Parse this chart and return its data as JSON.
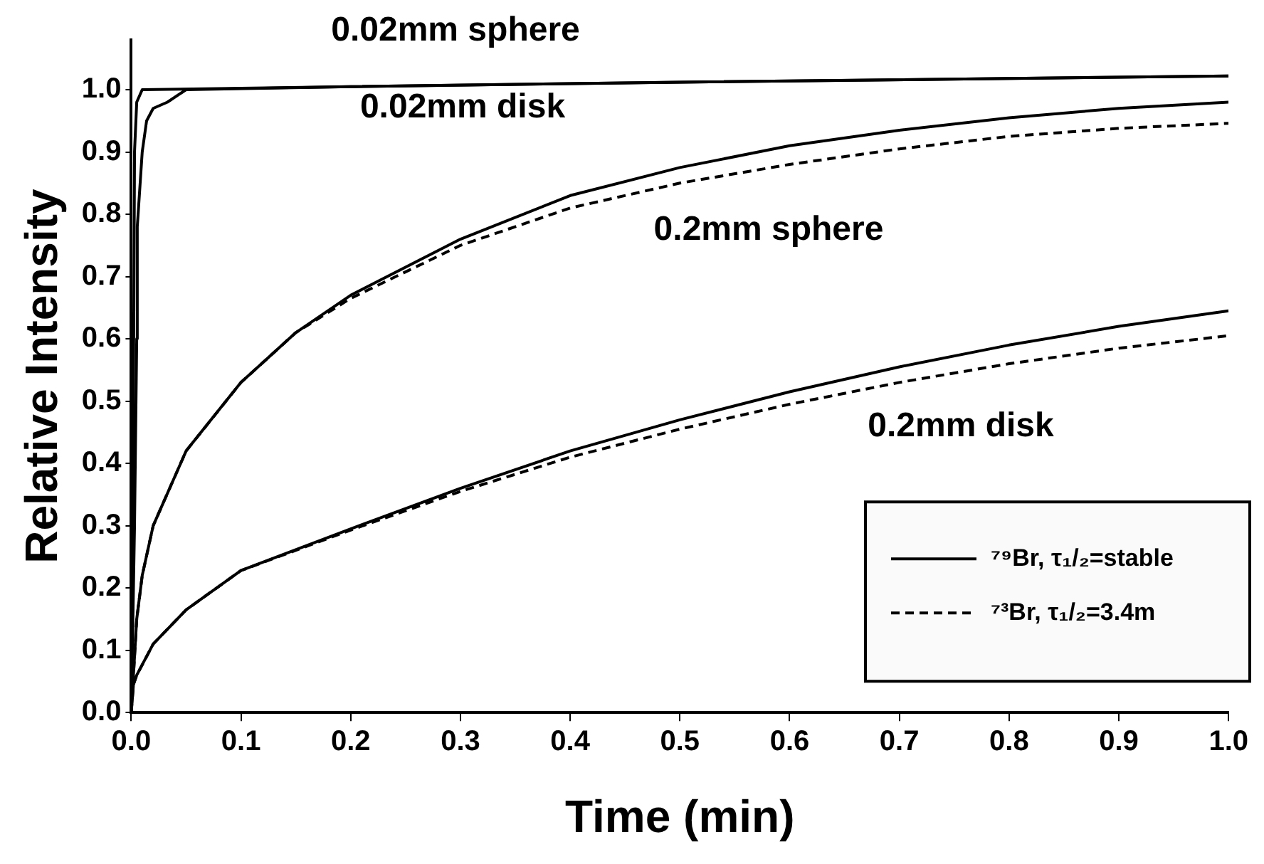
{
  "chart_data": {
    "type": "line",
    "xlabel": "Time (min)",
    "ylabel": "Relative Intensity",
    "xlim": [
      0,
      1.0
    ],
    "ylim": [
      0,
      1.08
    ],
    "xticks": [
      {
        "value": 0,
        "label": "0.0"
      },
      0.1,
      0.2,
      0.3,
      0.4,
      0.5,
      0.6,
      0.7,
      0.8,
      0.9,
      {
        "value": 1,
        "label": "1.0"
      }
    ],
    "yticks": [
      {
        "value": 0,
        "label": "0.0"
      },
      0.1,
      0.2,
      0.3,
      0.4,
      0.5,
      0.6,
      0.7,
      0.8,
      0.9,
      {
        "value": 1,
        "label": "1.0"
      }
    ],
    "grid": false,
    "legend": "bottom right",
    "marker": "none",
    "series": [
      {
        "color": "#000000",
        "line_style": "solid",
        "x": [
          0,
          0.002,
          0.003,
          0.005,
          0.01,
          0.2,
          0.5,
          1.0
        ],
        "values": [
          0,
          0.5,
          0.9,
          0.98,
          1.0,
          1.005,
          1.012,
          1.022
        ]
      },
      {
        "color": "#000000",
        "line_style": "solid",
        "x": [
          0,
          0.003,
          0.005,
          0.0055,
          0.01,
          0.014,
          0.02,
          0.033,
          0.05,
          0.2,
          0.5,
          1.0
        ],
        "values": [
          0,
          0.3,
          0.6,
          0.78,
          0.9,
          0.95,
          0.97,
          0.98,
          1.0,
          1.005,
          1.012,
          1.022
        ]
      },
      {
        "name": "⁷⁹Br, τ₁/₂=stable",
        "color": "#000000",
        "line_style": "solid",
        "x": [
          0,
          0.005,
          0.01,
          0.02,
          0.05,
          0.1,
          0.15,
          0.2,
          0.3,
          0.4,
          0.5,
          0.6,
          0.7,
          0.8,
          0.9,
          1.0
        ],
        "values": [
          0,
          0.15,
          0.22,
          0.3,
          0.42,
          0.53,
          0.61,
          0.67,
          0.76,
          0.83,
          0.875,
          0.91,
          0.935,
          0.955,
          0.97,
          0.98
        ]
      },
      {
        "name": "⁷³Br, τ₁/₂=3.4m",
        "color": "#000000",
        "line_style": "dashed",
        "x": [
          0,
          0.005,
          0.01,
          0.02,
          0.05,
          0.1,
          0.15,
          0.2,
          0.3,
          0.4,
          0.5,
          0.6,
          0.7,
          0.8,
          0.9,
          1.0
        ],
        "values": [
          0,
          0.15,
          0.22,
          0.3,
          0.42,
          0.53,
          0.61,
          0.665,
          0.75,
          0.81,
          0.85,
          0.88,
          0.905,
          0.925,
          0.938,
          0.946
        ]
      },
      {
        "color": "#000000",
        "line_style": "solid",
        "x": [
          0,
          0.002,
          0.005,
          0.02,
          0.05,
          0.1,
          0.2,
          0.3,
          0.4,
          0.5,
          0.6,
          0.7,
          0.8,
          0.9,
          1.0
        ],
        "values": [
          0,
          0.045,
          0.06,
          0.11,
          0.165,
          0.228,
          0.295,
          0.36,
          0.42,
          0.47,
          0.515,
          0.555,
          0.59,
          0.62,
          0.645
        ]
      },
      {
        "color": "#000000",
        "line_style": "dashed",
        "x": [
          0,
          0.002,
          0.005,
          0.02,
          0.05,
          0.1,
          0.2,
          0.3,
          0.4,
          0.5,
          0.6,
          0.7,
          0.8,
          0.9,
          1.0
        ],
        "values": [
          0,
          0.045,
          0.06,
          0.11,
          0.165,
          0.228,
          0.293,
          0.355,
          0.41,
          0.455,
          0.495,
          0.53,
          0.56,
          0.585,
          0.605
        ]
      }
    ],
    "annotations": [
      "0.02mm sphere",
      "0.02mm disk",
      "0.2mm sphere",
      "0.2mm disk"
    ]
  }
}
